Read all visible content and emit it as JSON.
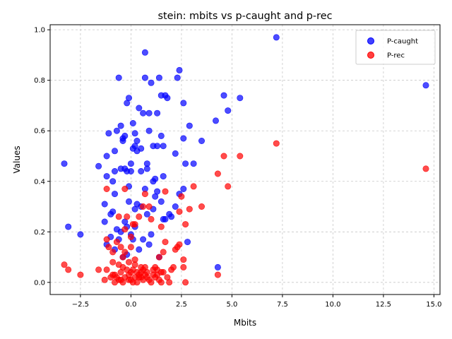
{
  "chart_data": {
    "type": "scatter",
    "title": "stein: mbits vs p-caught and p-rec",
    "xlabel": "Mbits",
    "ylabel": "Values",
    "xlim": [
      -4.0,
      15.3
    ],
    "ylim": [
      -0.048,
      1.02
    ],
    "xticks": [
      -2.5,
      0.0,
      2.5,
      5.0,
      7.5,
      10.0,
      12.5,
      15.0
    ],
    "xtick_labels": [
      "−2.5",
      "0.0",
      "2.5",
      "5.0",
      "7.5",
      "10.0",
      "12.5",
      "15.0"
    ],
    "yticks": [
      0.0,
      0.2,
      0.4,
      0.6,
      0.8,
      1.0
    ],
    "ytick_labels": [
      "0.0",
      "0.2",
      "0.4",
      "0.6",
      "0.8",
      "1.0"
    ],
    "grid": true,
    "legend_position": "top-right",
    "series": [
      {
        "name": "P-caught",
        "color": "#0000ff",
        "points": [
          [
            -3.3,
            0.47
          ],
          [
            -3.1,
            0.22
          ],
          [
            -2.5,
            0.19
          ],
          [
            -1.6,
            0.46
          ],
          [
            -1.3,
            0.24
          ],
          [
            -1.3,
            0.31
          ],
          [
            -1.2,
            0.42
          ],
          [
            -1.2,
            0.5
          ],
          [
            -1.1,
            0.59
          ],
          [
            -1.0,
            0.27
          ],
          [
            -0.9,
            0.28
          ],
          [
            -0.9,
            0.4
          ],
          [
            -0.8,
            0.44
          ],
          [
            -0.8,
            0.52
          ],
          [
            -0.8,
            0.35
          ],
          [
            -0.7,
            0.6
          ],
          [
            -0.6,
            0.81
          ],
          [
            -0.5,
            0.62
          ],
          [
            -0.5,
            0.45
          ],
          [
            -0.4,
            0.56
          ],
          [
            -0.4,
            0.57
          ],
          [
            -0.3,
            0.58
          ],
          [
            -0.3,
            0.45
          ],
          [
            -0.2,
            0.44
          ],
          [
            -0.2,
            0.71
          ],
          [
            -0.1,
            0.73
          ],
          [
            -0.1,
            0.38
          ],
          [
            0.0,
            0.44
          ],
          [
            0.0,
            0.47
          ],
          [
            0.1,
            0.63
          ],
          [
            0.1,
            0.53
          ],
          [
            0.2,
            0.54
          ],
          [
            0.2,
            0.59
          ],
          [
            0.3,
            0.52
          ],
          [
            0.3,
            0.56
          ],
          [
            0.4,
            0.69
          ],
          [
            0.5,
            0.53
          ],
          [
            0.5,
            0.44
          ],
          [
            0.6,
            0.67
          ],
          [
            0.7,
            0.81
          ],
          [
            0.7,
            0.91
          ],
          [
            0.8,
            0.47
          ],
          [
            0.8,
            0.45
          ],
          [
            0.9,
            0.67
          ],
          [
            0.9,
            0.6
          ],
          [
            1.0,
            0.79
          ],
          [
            1.1,
            0.54
          ],
          [
            1.1,
            0.4
          ],
          [
            1.2,
            0.41
          ],
          [
            1.3,
            0.54
          ],
          [
            1.3,
            0.67
          ],
          [
            1.4,
            0.81
          ],
          [
            1.5,
            0.74
          ],
          [
            1.5,
            0.58
          ],
          [
            1.6,
            0.54
          ],
          [
            1.6,
            0.42
          ],
          [
            1.7,
            0.74
          ],
          [
            1.8,
            0.73
          ],
          [
            1.9,
            0.27
          ],
          [
            2.2,
            0.51
          ],
          [
            2.3,
            0.81
          ],
          [
            2.4,
            0.84
          ],
          [
            2.6,
            0.71
          ],
          [
            2.6,
            0.57
          ],
          [
            2.7,
            0.47
          ],
          [
            2.9,
            0.62
          ],
          [
            3.1,
            0.47
          ],
          [
            3.5,
            0.56
          ],
          [
            4.2,
            0.64
          ],
          [
            4.3,
            0.06
          ],
          [
            4.6,
            0.74
          ],
          [
            4.8,
            0.68
          ],
          [
            5.4,
            0.73
          ],
          [
            7.2,
            0.97
          ],
          [
            14.6,
            0.78
          ],
          [
            -1.2,
            0.15
          ],
          [
            -1.0,
            0.18
          ],
          [
            -0.8,
            0.13
          ],
          [
            -0.7,
            0.21
          ],
          [
            -0.6,
            0.17
          ],
          [
            -0.5,
            0.2
          ],
          [
            -0.4,
            0.1
          ],
          [
            -0.3,
            0.24
          ],
          [
            -0.2,
            0.22
          ],
          [
            -0.2,
            0.11
          ],
          [
            -0.1,
            0.32
          ],
          [
            0.0,
            0.19
          ],
          [
            0.1,
            0.17
          ],
          [
            0.2,
            0.22
          ],
          [
            0.2,
            0.29
          ],
          [
            0.3,
            0.31
          ],
          [
            0.4,
            0.13
          ],
          [
            0.5,
            0.3
          ],
          [
            0.6,
            0.17
          ],
          [
            0.7,
            0.37
          ],
          [
            0.8,
            0.27
          ],
          [
            0.9,
            0.15
          ],
          [
            1.0,
            0.19
          ],
          [
            1.1,
            0.29
          ],
          [
            1.2,
            0.34
          ],
          [
            1.3,
            0.36
          ],
          [
            1.4,
            0.1
          ],
          [
            1.5,
            0.32
          ],
          [
            1.6,
            0.25
          ],
          [
            1.7,
            0.25
          ],
          [
            2.0,
            0.26
          ],
          [
            2.2,
            0.3
          ],
          [
            2.4,
            0.35
          ],
          [
            2.6,
            0.37
          ],
          [
            2.8,
            0.16
          ]
        ]
      },
      {
        "name": "P-rec",
        "color": "#ff0000",
        "points": [
          [
            -3.3,
            0.07
          ],
          [
            -3.1,
            0.05
          ],
          [
            -2.5,
            0.03
          ],
          [
            -1.6,
            0.05
          ],
          [
            -1.3,
            0.01
          ],
          [
            -1.2,
            0.05
          ],
          [
            -1.2,
            0.17
          ],
          [
            -1.2,
            0.37
          ],
          [
            -1.1,
            0.14
          ],
          [
            -1.0,
            0.02
          ],
          [
            -0.9,
            0.03
          ],
          [
            -0.9,
            0.08
          ],
          [
            -0.9,
            0.12
          ],
          [
            -0.8,
            0.0
          ],
          [
            -0.8,
            0.03
          ],
          [
            -0.7,
            0.16
          ],
          [
            -0.6,
            0.26
          ],
          [
            -0.6,
            0.01
          ],
          [
            -0.5,
            0.04
          ],
          [
            -0.5,
            0.14
          ],
          [
            -0.4,
            0.06
          ],
          [
            -0.4,
            0.0
          ],
          [
            -0.3,
            0.37
          ],
          [
            -0.3,
            0.21
          ],
          [
            -0.3,
            0.12
          ],
          [
            -0.2,
            0.26
          ],
          [
            -0.2,
            0.05
          ],
          [
            -0.1,
            0.01
          ],
          [
            -0.1,
            0.08
          ],
          [
            0.0,
            0.18
          ],
          [
            0.0,
            0.04
          ],
          [
            0.1,
            0.23
          ],
          [
            0.1,
            0.0
          ],
          [
            0.2,
            0.09
          ],
          [
            0.2,
            0.02
          ],
          [
            0.3,
            0.04
          ],
          [
            0.4,
            0.03
          ],
          [
            0.4,
            0.26
          ],
          [
            0.5,
            0.06
          ],
          [
            0.6,
            0.01
          ],
          [
            0.6,
            0.3
          ],
          [
            0.7,
            0.06
          ],
          [
            0.7,
            0.35
          ],
          [
            0.8,
            0.04
          ],
          [
            0.9,
            0.3
          ],
          [
            1.0,
            0.25
          ],
          [
            1.0,
            0.0
          ],
          [
            1.1,
            0.05
          ],
          [
            1.2,
            0.06
          ],
          [
            1.3,
            0.03
          ],
          [
            1.4,
            0.1
          ],
          [
            1.5,
            0.22
          ],
          [
            1.5,
            0.0
          ],
          [
            1.6,
            0.12
          ],
          [
            1.7,
            0.16
          ],
          [
            1.7,
            0.36
          ],
          [
            1.9,
            0.0
          ],
          [
            2.1,
            0.06
          ],
          [
            2.3,
            0.14
          ],
          [
            2.4,
            0.28
          ],
          [
            2.5,
            0.34
          ],
          [
            2.6,
            0.09
          ],
          [
            2.7,
            0.23
          ],
          [
            2.7,
            0.0
          ],
          [
            2.9,
            0.29
          ],
          [
            3.1,
            0.38
          ],
          [
            3.5,
            0.3
          ],
          [
            4.3,
            0.43
          ],
          [
            4.3,
            0.03
          ],
          [
            4.6,
            0.5
          ],
          [
            4.8,
            0.38
          ],
          [
            5.4,
            0.5
          ],
          [
            7.2,
            0.55
          ],
          [
            14.6,
            0.45
          ],
          [
            -0.5,
            0.01
          ],
          [
            -0.3,
            0.02
          ],
          [
            -0.1,
            0.03
          ],
          [
            0.0,
            0.01
          ],
          [
            0.1,
            0.05
          ],
          [
            0.3,
            0.0
          ],
          [
            0.4,
            0.02
          ],
          [
            0.5,
            0.04
          ],
          [
            0.6,
            0.05
          ],
          [
            0.8,
            0.02
          ],
          [
            0.9,
            0.01
          ],
          [
            1.1,
            0.03
          ],
          [
            1.2,
            0.02
          ],
          [
            1.4,
            0.01
          ],
          [
            1.6,
            0.04
          ],
          [
            1.8,
            0.02
          ],
          [
            2.0,
            0.05
          ],
          [
            2.2,
            0.13
          ],
          [
            2.4,
            0.15
          ],
          [
            2.6,
            0.06
          ],
          [
            -0.7,
            0.02
          ],
          [
            -0.6,
            0.07
          ],
          [
            -0.4,
            0.1
          ],
          [
            0.0,
            0.14
          ],
          [
            0.2,
            0.07
          ],
          [
            0.5,
            0.02
          ],
          [
            0.7,
            0.03
          ],
          [
            1.3,
            0.05
          ],
          [
            1.5,
            0.04
          ],
          [
            0.2,
            0.23
          ]
        ]
      }
    ]
  }
}
